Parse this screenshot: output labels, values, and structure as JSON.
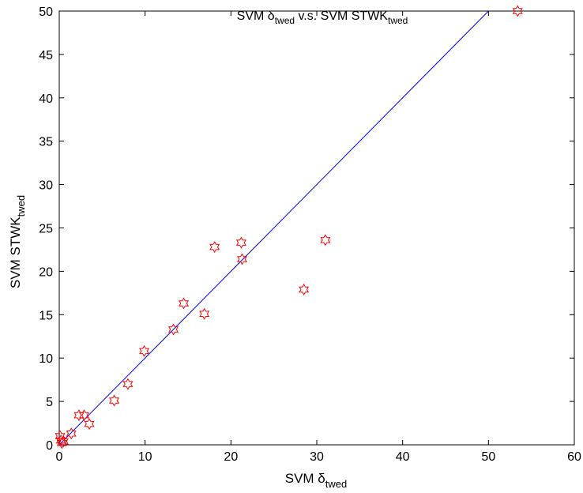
{
  "chart_data": {
    "type": "scatter",
    "title": {
      "prefix": "SVM δ",
      "prefix_sub": "twed",
      "middle": " v.s. SVM STWK",
      "suffix_sub": "twed"
    },
    "xlabel": {
      "main": "SVM δ",
      "sub": "twed"
    },
    "ylabel": {
      "main": "SVM STWK",
      "sub": "twed"
    },
    "xlim": [
      0,
      60
    ],
    "ylim": [
      0,
      50
    ],
    "xticks": [
      "0",
      "10",
      "20",
      "30",
      "40",
      "50",
      "60"
    ],
    "yticks": [
      "0",
      "5",
      "10",
      "15",
      "20",
      "25",
      "30",
      "35",
      "40",
      "45",
      "50"
    ],
    "grid": false,
    "marker": "hexagram",
    "marker_color": "#ff0000",
    "line_color": "#0000ff",
    "reference_line": {
      "x": [
        0,
        50
      ],
      "y": [
        0,
        50
      ]
    },
    "points": {
      "x": [
        0.1,
        0.2,
        0.3,
        0.5,
        1.4,
        2.3,
        2.9,
        3.5,
        6.4,
        8.0,
        9.9,
        13.3,
        14.5,
        16.9,
        18.1,
        21.2,
        21.3,
        28.5,
        31.0,
        53.4
      ],
      "y": [
        1.0,
        0.5,
        0.2,
        0.4,
        1.3,
        3.4,
        3.4,
        2.4,
        5.1,
        7.0,
        10.8,
        13.3,
        16.3,
        15.1,
        22.8,
        23.3,
        21.4,
        17.9,
        23.6,
        50.0
      ]
    }
  }
}
